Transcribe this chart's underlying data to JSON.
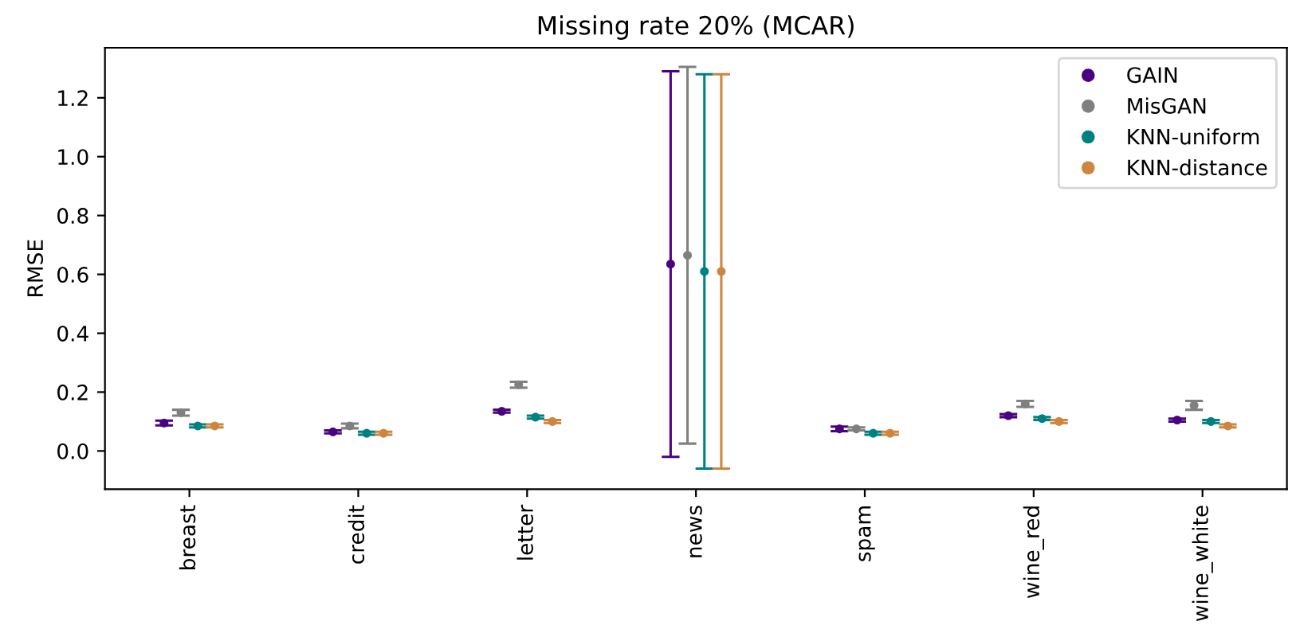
{
  "chart_data": {
    "type": "scatter",
    "title": "Missing rate 20% (MCAR)",
    "ylabel": "RMSE",
    "categories": [
      "breast",
      "credit",
      "letter",
      "news",
      "spam",
      "wine_red",
      "wine_white"
    ],
    "ylim": [
      -0.13,
      1.37
    ],
    "yticks": [
      {
        "value": 0.0,
        "label": "0.0"
      },
      {
        "value": 0.2,
        "label": "0.2"
      },
      {
        "value": 0.4,
        "label": "0.4"
      },
      {
        "value": 0.6,
        "label": "0.6"
      },
      {
        "value": 0.8,
        "label": "0.8"
      },
      {
        "value": 1.0,
        "label": "1.0"
      },
      {
        "value": 1.2,
        "label": "1.2"
      }
    ],
    "legend": "top right",
    "grid": false,
    "marker": "circle",
    "series": [
      {
        "name": "GAIN",
        "color": "#4b0082",
        "values": [
          0.095,
          0.065,
          0.135,
          0.635,
          0.075,
          0.12,
          0.105
        ],
        "errors": [
          0.008,
          0.005,
          0.005,
          0.655,
          0.008,
          0.005,
          0.005
        ]
      },
      {
        "name": "MisGAN",
        "color": "#808080",
        "values": [
          0.13,
          0.085,
          0.225,
          0.665,
          0.075,
          0.16,
          0.155
        ],
        "errors": [
          0.01,
          0.008,
          0.01,
          0.64,
          0.005,
          0.01,
          0.015
        ]
      },
      {
        "name": "KNN-uniform",
        "color": "#008080",
        "values": [
          0.085,
          0.06,
          0.115,
          0.61,
          0.06,
          0.11,
          0.1
        ],
        "errors": [
          0.005,
          0.005,
          0.005,
          0.67,
          0.005,
          0.005,
          0.005
        ]
      },
      {
        "name": "KNN-distance",
        "color": "#cd853f",
        "values": [
          0.085,
          0.06,
          0.1,
          0.61,
          0.06,
          0.1,
          0.085
        ],
        "errors": [
          0.005,
          0.005,
          0.005,
          0.67,
          0.005,
          0.005,
          0.005
        ]
      }
    ]
  }
}
